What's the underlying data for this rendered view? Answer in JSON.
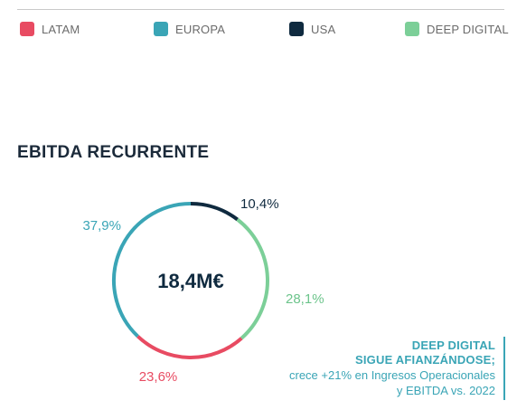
{
  "legend": [
    {
      "label": "LATAM",
      "color": "#e84b62"
    },
    {
      "label": "EUROPA",
      "color": "#3aa5b6"
    },
    {
      "label": "USA",
      "color": "#0f2a3f"
    },
    {
      "label": "DEEP DIGITAL",
      "color": "#7ccf98"
    }
  ],
  "chart_data": {
    "type": "pie",
    "title": "EBITDA RECURRENTE",
    "center_label": "18,4M€",
    "slices": [
      {
        "category": "USA",
        "value": 10.4,
        "label": "10,4%",
        "color": "#0f2a3f"
      },
      {
        "category": "DEEP DIGITAL",
        "value": 28.1,
        "label": "28,1%",
        "color": "#7ccf98"
      },
      {
        "category": "LATAM",
        "value": 23.6,
        "label": "23,6%",
        "color": "#e84b62"
      },
      {
        "category": "EUROPA",
        "value": 37.9,
        "label": "37,9%",
        "color": "#3aa5b6"
      }
    ]
  },
  "annotation": {
    "line1": "DEEP DIGITAL",
    "line2": "SIGUE AFIANZÁNDOSE;",
    "line3": "crece +21% en Ingresos Operacionales",
    "line4": "y EBITDA vs. 2022"
  }
}
